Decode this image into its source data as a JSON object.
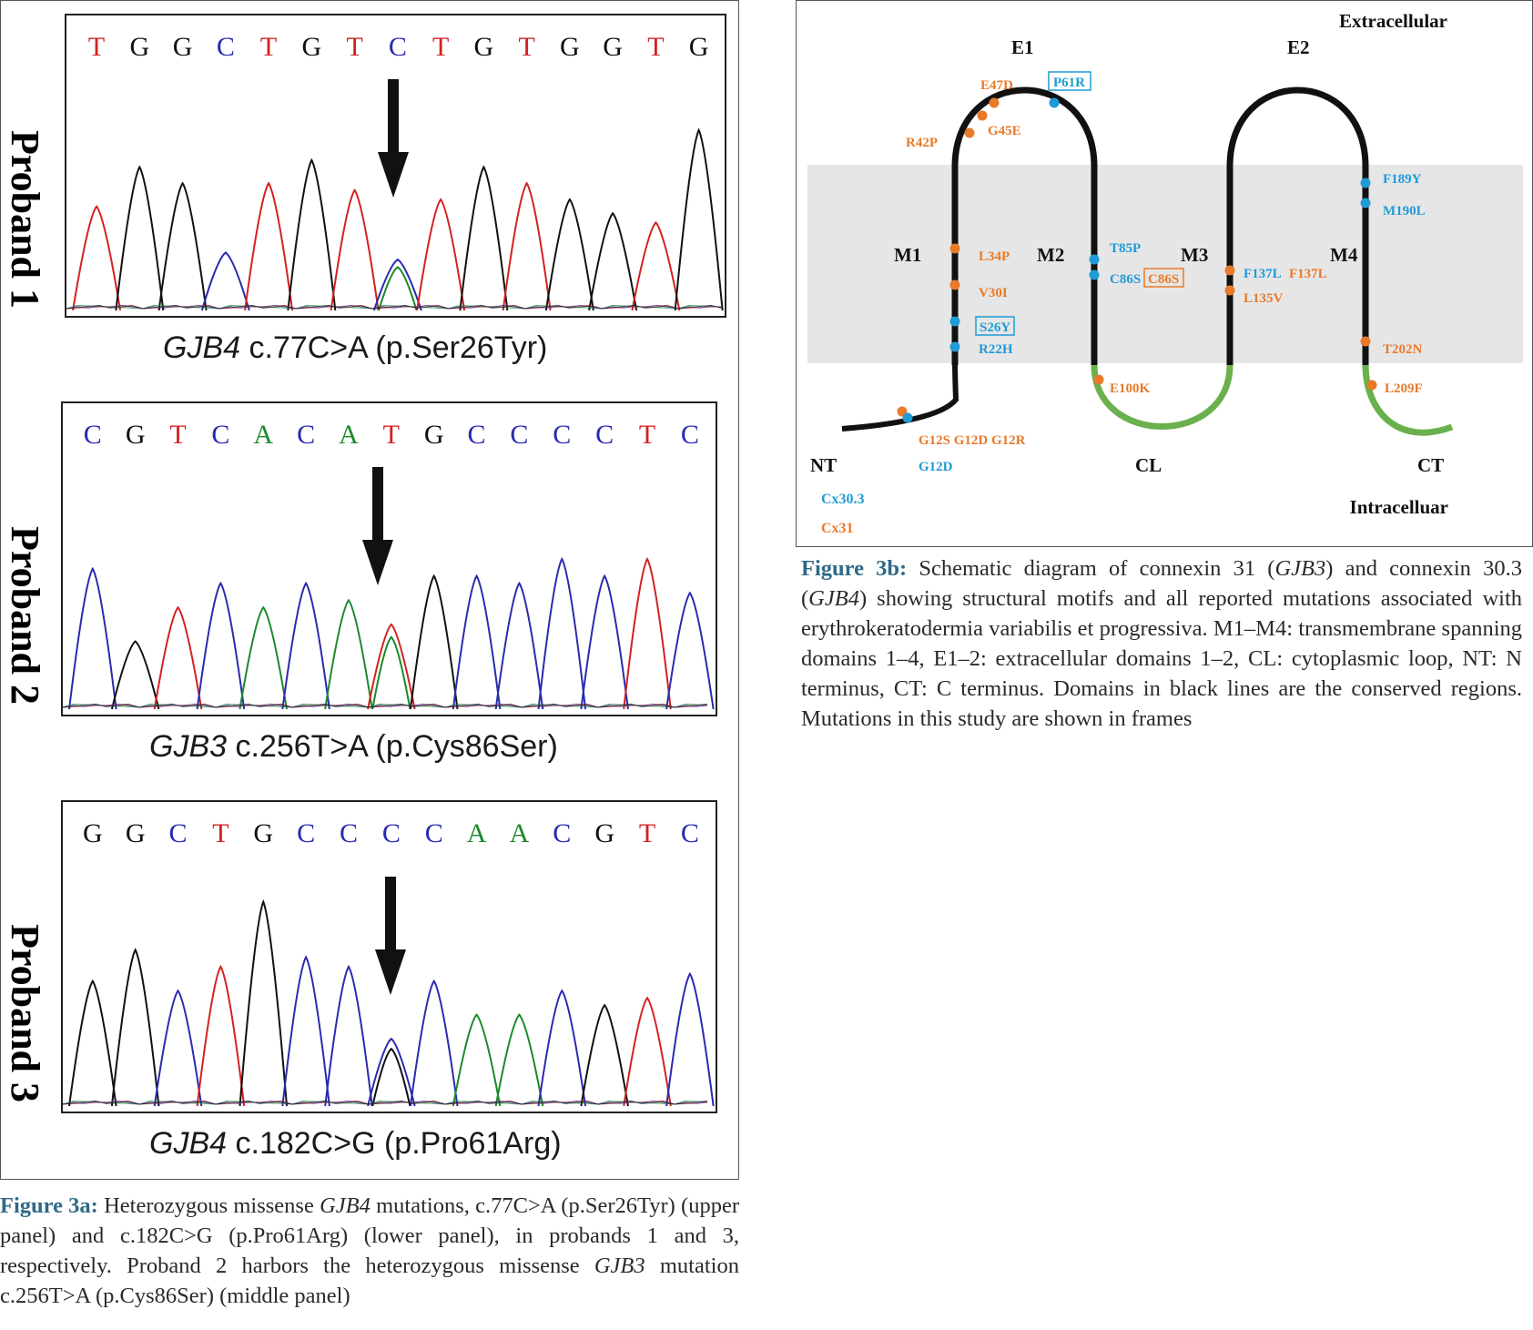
{
  "figure_3a": {
    "panels": [
      {
        "proband_label": "Proband 1",
        "bases": [
          "T",
          "G",
          "G",
          "C",
          "T",
          "G",
          "T",
          "C",
          "T",
          "G",
          "T",
          "G",
          "G",
          "T",
          "G"
        ],
        "caption_gene": "GJB4",
        "caption_rest": " c.77C>A (p.Ser26Tyr)"
      },
      {
        "proband_label": "Proband 2",
        "bases": [
          "C",
          "G",
          "T",
          "C",
          "A",
          "C",
          "A",
          "T",
          "G",
          "C",
          "C",
          "C",
          "C",
          "T",
          "C"
        ],
        "caption_gene": "GJB3",
        "caption_rest": " c.256T>A (p.Cys86Ser)"
      },
      {
        "proband_label": "Proband 3",
        "bases": [
          "G",
          "G",
          "C",
          "T",
          "G",
          "C",
          "C",
          "C",
          "C",
          "A",
          "A",
          "C",
          "G",
          "T",
          "C"
        ],
        "caption_gene": "GJB4",
        "caption_rest": " c.182C>G (p.Pro61Arg)"
      }
    ],
    "base_colors": {
      "A": "#1a8a2a",
      "C": "#2a2ab0",
      "G": "#111111",
      "T": "#d42020"
    },
    "caption": {
      "label": "Figure 3a:",
      "t1": " Heterozygous missense ",
      "g1": "GJB4",
      "t2": " mutations, c.77C>A (p.Ser26Tyr) (upper panel) and c.182C>G (p.Pro61Arg) (lower panel), in probands 1 and 3, respectively. Proband 2 harbors the heterozygous missense ",
      "g2": "GJB3",
      "t3": " mutation c.256T>A (p.Cys86Ser) (middle panel)"
    }
  },
  "figure_3b": {
    "region_labels": {
      "extracellular": "Extracellular",
      "intracellular": "Intracelluar",
      "e1": "E1",
      "e2": "E2",
      "m1": "M1",
      "m2": "M2",
      "m3": "M3",
      "m4": "M4",
      "nt": "NT",
      "cl": "CL",
      "ct": "CT"
    },
    "mutations": {
      "e47d": "E47D",
      "p61r": "P61R",
      "g45e": "G45E",
      "r42p": "R42P",
      "l34p": "L34P",
      "v30i": "V30I",
      "s26y": "S26Y",
      "r22h": "R22H",
      "t85p": "T85P",
      "c86s_blue": "C86S",
      "c86s_boxed": "C86S",
      "f137l_blue": "F137L",
      "f137l_orange": "F137L",
      "l135v": "L135V",
      "f189y": "F189Y",
      "m190l": "M190L",
      "t202n": "T202N",
      "e100k": "E100K",
      "l209f": "L209F",
      "g12_orange": "G12S G12D G12R",
      "g12d_blue": "G12D"
    },
    "legend": {
      "cx303": "Cx30.3",
      "cx31": "Cx31"
    },
    "colors": {
      "cx303_blue": "#1f9bd6",
      "cx31_orange": "#e87a2a",
      "membrane_gray": "#e6e6e6",
      "conserved_black": "#111111",
      "variable_green": "#6ab04c"
    },
    "caption": {
      "label": "Figure 3b:",
      "t1": " Schematic diagram of connexin 31 (",
      "g1": "GJB3",
      "t2": ") and connexin 30.3 (",
      "g2": "GJB4",
      "t3": ") showing structural motifs and all reported mutations associated with erythrokeratodermia variabilis et progressiva. M1–M4: transmembrane spanning domains 1–4, E1–2: extracellular domains 1–2, CL: cytoplasmic loop, NT: N terminus, CT: C terminus. Domains in black lines are the conserved regions. Mutations in this study are shown in frames"
    }
  }
}
